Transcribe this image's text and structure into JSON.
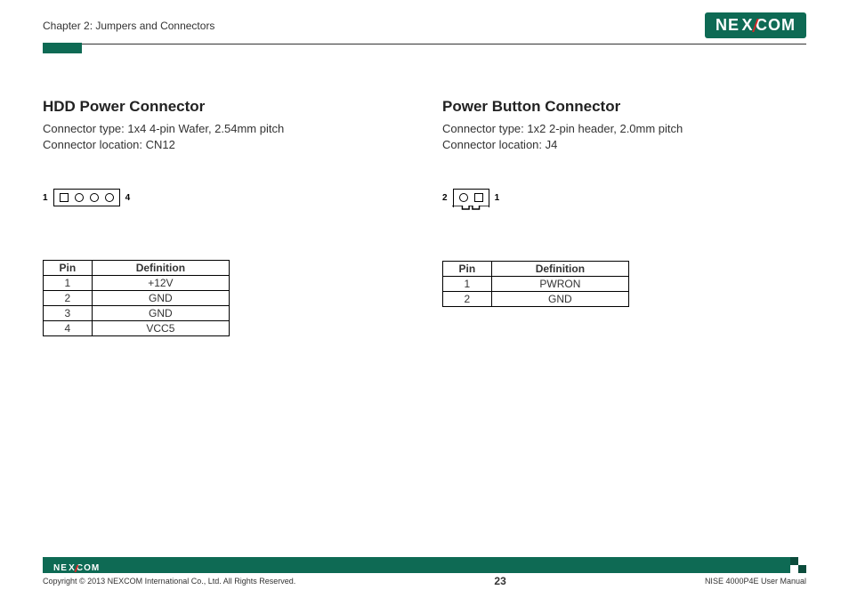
{
  "header": {
    "chapter_title": "Chapter 2: Jumpers and Connectors",
    "brand": "NEXCOM",
    "brand_segments": {
      "pre": "NE",
      "x": "X",
      "post": "COM"
    },
    "brand_colors": {
      "bg": "#0e6a54",
      "text": "#ffffff",
      "accent": "#d62828"
    }
  },
  "left": {
    "title": "HDD Power Connector",
    "meta_line1": "Connector type: 1x4 4-pin Wafer, 2.54mm pitch",
    "meta_line2": "Connector location: CN12",
    "diagram": {
      "left_label": "1",
      "right_label": "4",
      "pins": [
        "square",
        "circle",
        "circle",
        "circle"
      ]
    },
    "table": {
      "columns": [
        "Pin",
        "Definition"
      ],
      "rows": [
        [
          "1",
          "+12V"
        ],
        [
          "2",
          "GND"
        ],
        [
          "3",
          "GND"
        ],
        [
          "4",
          "VCC5"
        ]
      ]
    }
  },
  "right": {
    "title": "Power Button Connector",
    "meta_line1": "Connector type: 1x2 2-pin header, 2.0mm pitch",
    "meta_line2": "Connector location: J4",
    "diagram": {
      "left_label": "2",
      "right_label": "1",
      "pins": [
        "circle",
        "square"
      ]
    },
    "table": {
      "columns": [
        "Pin",
        "Definition"
      ],
      "rows": [
        [
          "1",
          "PWRON"
        ],
        [
          "2",
          "GND"
        ]
      ]
    }
  },
  "footer": {
    "copyright": "Copyright © 2013 NEXCOM International Co., Ltd. All Rights Reserved.",
    "page_number": "23",
    "manual_name": "NISE 4000P4E User Manual",
    "brand_segments": {
      "pre": "NE",
      "x": "X",
      "post": "COM"
    }
  },
  "colors": {
    "brand_green": "#0e6a54",
    "brand_green_dark": "#0b4c3c",
    "text": "#333333",
    "border": "#000000",
    "page_bg": "#ffffff"
  }
}
